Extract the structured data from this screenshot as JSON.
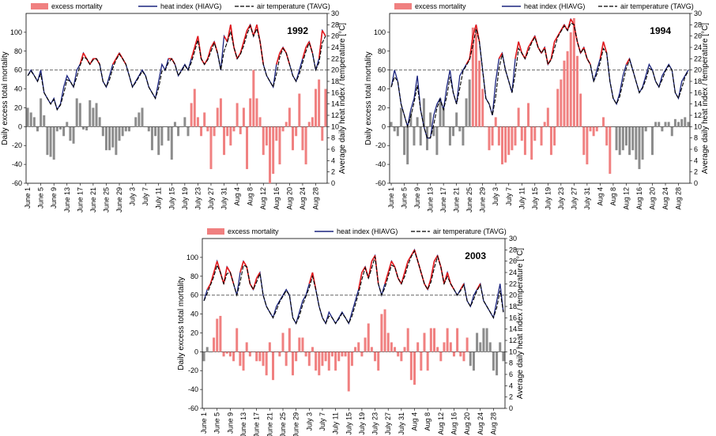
{
  "legend": {
    "excess": "excess mortality",
    "heat": "heat index (HIAVG)",
    "air": "air temperature (TAVG)"
  },
  "colors": {
    "bar_hot": "#f08080",
    "bar_normal": "#8c8c8c",
    "heat_line": "#1a237e",
    "heat_hot": "#e41a1c",
    "air_line": "#000000",
    "ref_line": "#555555"
  },
  "left_axis_label": "Daily excess total mortality",
  "right_axis_label": "Average daily heat index / temperature [°C]",
  "chart_data": [
    {
      "type": "bar",
      "title": "1992",
      "xlabel": "",
      "ylabel": "Daily excess total mortality",
      "y2label": "Average daily heat index / temperature [°C]",
      "ylim": [
        -60,
        120
      ],
      "y2lim": [
        0,
        30
      ],
      "reference_line": 60,
      "xtick_labels": [
        "June 1",
        "June 5",
        "June 9",
        "June 13",
        "June 17",
        "June 21",
        "June 25",
        "June 29",
        "July 3",
        "July 7",
        "July 11",
        "July 15",
        "July 19",
        "July 23",
        "July 27",
        "July 31",
        "Aug 4",
        "Aug 8",
        "Aug 12",
        "Aug 16",
        "Aug 20",
        "Aug 24",
        "Aug 28"
      ],
      "yticks": [
        -60,
        -40,
        -20,
        0,
        20,
        40,
        60,
        80,
        100
      ],
      "y2ticks": [
        0,
        2,
        4,
        6,
        8,
        10,
        12,
        14,
        16,
        18,
        20,
        22,
        24,
        26,
        28,
        30
      ],
      "hot_days": [
        50,
        51,
        52,
        53,
        54,
        55,
        56,
        57,
        58,
        59,
        60,
        61,
        62,
        63,
        64,
        65,
        66,
        67,
        68,
        69,
        70,
        71,
        72,
        73,
        74,
        75,
        76,
        77,
        78,
        79,
        80,
        81,
        82,
        83,
        84,
        85,
        86,
        87,
        88,
        89,
        90,
        91
      ],
      "excess": [
        20,
        15,
        10,
        -5,
        30,
        12,
        -30,
        -32,
        -35,
        -5,
        -3,
        -10,
        5,
        -15,
        -18,
        30,
        25,
        -3,
        -4,
        28,
        20,
        25,
        10,
        -10,
        -25,
        -25,
        -22,
        -30,
        -15,
        -10,
        -5,
        -5,
        0,
        10,
        15,
        20,
        0,
        -5,
        -25,
        -10,
        -30,
        -20,
        0,
        -15,
        -35,
        5,
        -10,
        0,
        10,
        -10,
        25,
        40,
        10,
        -10,
        15,
        -5,
        -45,
        -10,
        20,
        30,
        -30,
        -10,
        -20,
        -5,
        25,
        -8,
        20,
        -45,
        30,
        60,
        30,
        10,
        -30,
        -20,
        -60,
        -50,
        -15,
        -40,
        -5,
        5,
        20,
        -25,
        -10,
        35,
        -25,
        -40,
        5,
        10,
        40,
        50,
        -15,
        40
      ],
      "heat_index": [
        19,
        20,
        19,
        18,
        20,
        16,
        15,
        14,
        15,
        13,
        14,
        17,
        19,
        18,
        17,
        20,
        21,
        23,
        22,
        21,
        22,
        22,
        21,
        18,
        17,
        19,
        21,
        22,
        23,
        22,
        21,
        19,
        17,
        18,
        19,
        20,
        19,
        17,
        16,
        15,
        18,
        21,
        20,
        22,
        22,
        21,
        19,
        20,
        21,
        20,
        22,
        24,
        26,
        22,
        21,
        22,
        24,
        25,
        23,
        20,
        26,
        25,
        28,
        24,
        22,
        23,
        25,
        27,
        28,
        26,
        28,
        25,
        21,
        19,
        18,
        17,
        21,
        23,
        24,
        23,
        21,
        19,
        18,
        20,
        22,
        24,
        25,
        23,
        20,
        22,
        27,
        26
      ]
    },
    {
      "type": "bar",
      "title": "1994",
      "xlabel": "",
      "ylabel": "Daily excess total mortality",
      "y2label": "Average daily heat index / temperature [°C]",
      "ylim": [
        -60,
        120
      ],
      "y2lim": [
        0,
        30
      ],
      "reference_line": 60,
      "xtick_labels": [
        "June 1",
        "June 5",
        "June 9",
        "June 13",
        "June 17",
        "June 21",
        "June 25",
        "June 29",
        "July 3",
        "July 7",
        "July 11",
        "July 15",
        "July 19",
        "July 23",
        "July 27",
        "July 31",
        "Aug 4",
        "Aug 8",
        "Aug 12",
        "Aug 16",
        "Aug 20",
        "Aug 24",
        "Aug 28"
      ],
      "yticks": [
        -60,
        -40,
        -20,
        0,
        20,
        40,
        60,
        80,
        100
      ],
      "y2ticks": [
        0,
        2,
        4,
        6,
        8,
        10,
        12,
        14,
        16,
        18,
        20,
        22,
        24,
        26,
        28,
        30
      ],
      "hot_days": [
        25,
        26,
        27,
        28,
        29,
        30,
        31,
        32,
        33,
        34,
        35,
        36,
        37,
        38,
        39,
        40,
        41,
        42,
        43,
        44,
        45,
        46,
        47,
        48,
        49,
        50,
        51,
        52,
        53,
        54,
        55,
        56,
        57,
        58,
        59,
        60,
        61,
        62,
        63,
        64,
        65,
        66,
        67
      ],
      "excess": [
        5,
        -5,
        -10,
        20,
        -30,
        -40,
        15,
        -20,
        10,
        -20,
        30,
        -25,
        15,
        -10,
        -30,
        30,
        20,
        0,
        -20,
        -10,
        15,
        -5,
        -20,
        30,
        50,
        105,
        100,
        70,
        40,
        0,
        -25,
        -20,
        10,
        -20,
        -40,
        -38,
        -30,
        -25,
        -20,
        20,
        -15,
        -30,
        25,
        -35,
        -15,
        0,
        -20,
        5,
        20,
        -30,
        -20,
        40,
        50,
        70,
        80,
        100,
        115,
        75,
        35,
        -30,
        -40,
        -5,
        -10,
        -5,
        0,
        10,
        -20,
        -50,
        0,
        -25,
        -30,
        -25,
        -20,
        -30,
        -25,
        -35,
        -45,
        -35,
        -5,
        0,
        -30,
        5,
        5,
        -5,
        5,
        5,
        -10,
        8,
        5,
        8,
        10,
        5
      ],
      "heat_index": [
        17,
        20,
        18,
        14,
        12,
        10,
        13,
        15,
        19,
        13,
        10,
        8,
        8,
        12,
        14,
        15,
        13,
        17,
        20,
        16,
        14,
        19,
        20,
        21,
        22,
        26,
        28,
        25,
        20,
        15,
        14,
        12,
        18,
        22,
        23,
        20,
        18,
        16,
        22,
        25,
        23,
        22,
        24,
        25,
        26,
        24,
        23,
        24,
        21,
        22,
        25,
        26,
        27,
        28,
        27,
        29,
        28,
        25,
        23,
        24,
        22,
        21,
        18,
        20,
        22,
        25,
        23,
        18,
        15,
        14,
        16,
        19,
        21,
        22,
        20,
        18,
        16,
        17,
        19,
        21,
        20,
        18,
        17,
        19,
        20,
        21,
        20,
        16,
        15,
        18,
        19,
        20
      ]
    },
    {
      "type": "bar",
      "title": "2003",
      "xlabel": "",
      "ylabel": "Daily excess total mortality",
      "y2label": "Average daily heat index / temperature [°C]",
      "ylim": [
        -60,
        120
      ],
      "y2lim": [
        0,
        30
      ],
      "reference_line": 60,
      "xtick_labels": [
        "June 1",
        "June 5",
        "June 9",
        "June 13",
        "June 17",
        "June 21",
        "June 25",
        "June 29",
        "July 3",
        "July 7",
        "July 11",
        "July 15",
        "July 19",
        "July 23",
        "July 27",
        "July 31",
        "Aug 4",
        "Aug 8",
        "Aug 12",
        "Aug 16",
        "Aug 20",
        "Aug 24",
        "Aug 28"
      ],
      "yticks": [
        -60,
        -40,
        -20,
        0,
        20,
        40,
        60,
        80,
        100
      ],
      "y2ticks": [
        0,
        2,
        4,
        6,
        8,
        10,
        12,
        14,
        16,
        18,
        20,
        22,
        24,
        26,
        28,
        30
      ],
      "hot_days": [
        3,
        4,
        5,
        6,
        7,
        8,
        9,
        10,
        11,
        12,
        13,
        14,
        15,
        16,
        17,
        18,
        19,
        20,
        21,
        22,
        23,
        24,
        25,
        26,
        27,
        28,
        29,
        30,
        31,
        32,
        33,
        34,
        35,
        36,
        37,
        38,
        39,
        40,
        41,
        42,
        43,
        44,
        45,
        46,
        47,
        48,
        49,
        50,
        51,
        52,
        53,
        54,
        55,
        56,
        57,
        58,
        59,
        60,
        61,
        62,
        63,
        64,
        65,
        66,
        67,
        68,
        69,
        70,
        71,
        72,
        73,
        74,
        75,
        76,
        77,
        78,
        79,
        80
      ],
      "excess": [
        -10,
        5,
        0,
        15,
        35,
        38,
        -5,
        -2,
        -5,
        -10,
        25,
        -15,
        -20,
        10,
        -5,
        0,
        -10,
        -10,
        -15,
        -25,
        10,
        -30,
        0,
        -5,
        20,
        -15,
        25,
        -25,
        -10,
        15,
        15,
        -5,
        -15,
        5,
        -20,
        -25,
        -15,
        -10,
        -20,
        -5,
        -20,
        -10,
        -5,
        -5,
        -42,
        -15,
        5,
        10,
        -5,
        15,
        30,
        5,
        -10,
        -20,
        40,
        45,
        20,
        10,
        5,
        -5,
        -10,
        5,
        25,
        -30,
        -35,
        10,
        -20,
        20,
        -20,
        25,
        25,
        5,
        -10,
        10,
        25,
        10,
        -5,
        25,
        -5,
        -10,
        15,
        -15,
        -20,
        20,
        10,
        25,
        25,
        10,
        -20,
        -25,
        10,
        -10
      ],
      "heat_index": [
        19,
        21,
        22,
        24,
        26,
        24,
        22,
        25,
        24,
        22,
        20,
        24,
        26,
        25,
        22,
        21,
        23,
        24,
        20,
        18,
        17,
        16,
        18,
        19,
        20,
        21,
        20,
        16,
        15,
        17,
        19,
        20,
        22,
        24,
        21,
        18,
        16,
        15,
        17,
        16,
        15,
        16,
        17,
        16,
        15,
        17,
        19,
        21,
        24,
        25,
        23,
        26,
        27,
        22,
        20,
        22,
        24,
        26,
        25,
        23,
        22,
        24,
        26,
        27,
        28,
        26,
        24,
        22,
        21,
        23,
        26,
        27,
        25,
        22,
        24,
        22,
        21,
        20,
        21,
        22,
        19,
        18,
        20,
        21,
        22,
        19,
        18,
        17,
        16,
        19,
        22,
        17
      ]
    }
  ]
}
